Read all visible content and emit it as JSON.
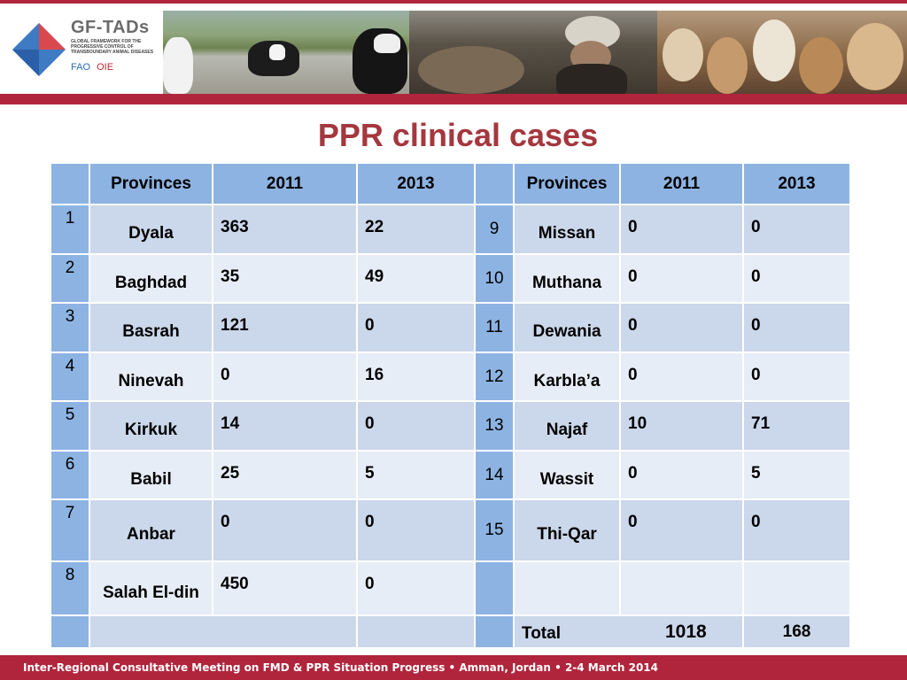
{
  "header": {
    "logo_title": "GF-TADs",
    "logo_subtitle": "GLOBAL FRAMEWORK FOR THE PROGRESSIVE CONTROL OF TRANSBOUNDARY ANIMAL DISEASES",
    "logo_fao": "FAO",
    "logo_oie": "OIE"
  },
  "title": "PPR clinical cases",
  "table": {
    "col_provinces": "Provinces",
    "col_2011": "2011",
    "col_2013": "2013",
    "rows": [
      {
        "left": {
          "idx": "1",
          "province": "Dyala",
          "y2011": "363",
          "y2013": "22"
        },
        "right": {
          "idx": "9",
          "province": "Missan",
          "y2011": "0",
          "y2013": "0"
        }
      },
      {
        "left": {
          "idx": "2",
          "province": "Baghdad",
          "y2011": "35",
          "y2013": "49"
        },
        "right": {
          "idx": "10",
          "province": "Muthana",
          "y2011": "0",
          "y2013": "0"
        }
      },
      {
        "left": {
          "idx": "3",
          "province": "Basrah",
          "y2011": "121",
          "y2013": "0"
        },
        "right": {
          "idx": "11",
          "province": "Dewania",
          "y2011": "0",
          "y2013": "0"
        }
      },
      {
        "left": {
          "idx": "4",
          "province": "Ninevah",
          "y2011": "0",
          "y2013": "16"
        },
        "right": {
          "idx": "12",
          "province": "Karbla’a",
          "y2011": "0",
          "y2013": "0"
        }
      },
      {
        "left": {
          "idx": "5",
          "province": "Kirkuk",
          "y2011": "14",
          "y2013": "0"
        },
        "right": {
          "idx": "13",
          "province": "Najaf",
          "y2011": "10",
          "y2013": "71"
        }
      },
      {
        "left": {
          "idx": "6",
          "province": "Babil",
          "y2011": "25",
          "y2013": "5"
        },
        "right": {
          "idx": "14",
          "province": "Wassit",
          "y2011": "0",
          "y2013": "5"
        }
      },
      {
        "left": {
          "idx": "7",
          "province": "Anbar",
          "y2011": "0",
          "y2013": "0"
        },
        "right": {
          "idx": "15",
          "province": "Thi-Qar",
          "y2011": "0",
          "y2013": "0"
        }
      },
      {
        "left": {
          "idx": "8",
          "province": "Salah El-din",
          "y2011": "450",
          "y2013": "0"
        },
        "right": {
          "idx": "",
          "province": "",
          "y2011": "",
          "y2013": ""
        }
      }
    ],
    "total_label": "Total",
    "total_2011": "1018",
    "total_2013": "168"
  },
  "footer": "Inter-Regional Consultative Meeting on FMD & PPR Situation Progress  •  Amman, Jordan  •  2-4 March 2014",
  "colors": {
    "accent": "#b0253c",
    "title": "#a5373e",
    "header_cell": "#8db3e2",
    "row_dark": "#cbd7ea",
    "row_light": "#e7edf6"
  }
}
